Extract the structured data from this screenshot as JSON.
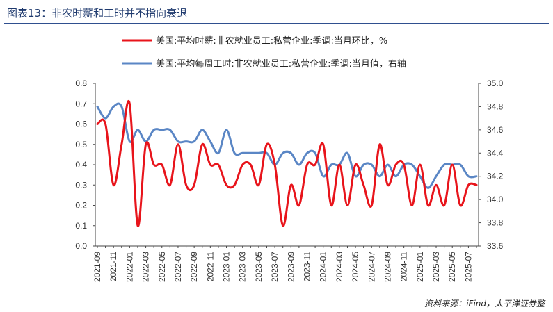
{
  "title": "图表13：非农时薪和工时并不指向衰退",
  "source": "资料来源：iFind，太平洋证券整",
  "chart_data": {
    "type": "line",
    "x": [
      "2021-09",
      "2021-10",
      "2021-11",
      "2021-12",
      "2022-01",
      "2022-02",
      "2022-03",
      "2022-04",
      "2022-05",
      "2022-06",
      "2022-07",
      "2022-08",
      "2022-09",
      "2022-10",
      "2022-11",
      "2022-12",
      "2023-01",
      "2023-02",
      "2023-03",
      "2023-04",
      "2023-05",
      "2023-06",
      "2023-07",
      "2023-08",
      "2023-09",
      "2023-10",
      "2023-11",
      "2023-12",
      "2024-01",
      "2024-02",
      "2024-03",
      "2024-04",
      "2024-05",
      "2024-06",
      "2024-07",
      "2024-08",
      "2024-09",
      "2024-10",
      "2024-11",
      "2024-12",
      "2025-01",
      "2025-02",
      "2025-03",
      "2025-04",
      "2025-05",
      "2025-06",
      "2025-07",
      "2025-08"
    ],
    "x_tick_labels": [
      "2021-09",
      "2021-11",
      "2022-01",
      "2022-03",
      "2022-05",
      "2022-07",
      "2022-09",
      "2022-11",
      "2023-01",
      "2023-03",
      "2023-05",
      "2023-07",
      "2023-09",
      "2023-11",
      "2024-01",
      "2024-03",
      "2024-05",
      "2024-07",
      "2024-09",
      "2024-11",
      "2025-01",
      "2025-03",
      "2025-05",
      "2025-07"
    ],
    "series": [
      {
        "name": "美国:平均时薪:非农就业员工:私营企业:季调:当月环比，%",
        "axis": "left",
        "color": "#e8141b",
        "values": [
          0.6,
          0.6,
          0.3,
          0.5,
          0.7,
          0.1,
          0.5,
          0.4,
          0.4,
          0.3,
          0.5,
          0.3,
          0.3,
          0.5,
          0.4,
          0.4,
          0.3,
          0.3,
          0.4,
          0.4,
          0.3,
          0.5,
          0.4,
          0.1,
          0.3,
          0.2,
          0.4,
          0.4,
          0.5,
          0.2,
          0.4,
          0.2,
          0.4,
          0.3,
          0.2,
          0.5,
          0.3,
          0.4,
          0.4,
          0.2,
          0.4,
          0.2,
          0.3,
          0.2,
          0.4,
          0.2,
          0.3,
          0.3
        ]
      },
      {
        "name": "美国:平均每周工时:非农就业员工:私营企业:季调:当月值，右轴",
        "axis": "right",
        "color": "#5a86c5",
        "values": [
          34.8,
          34.7,
          34.8,
          34.8,
          34.5,
          34.6,
          34.5,
          34.6,
          34.6,
          34.6,
          34.5,
          34.5,
          34.5,
          34.6,
          34.5,
          34.4,
          34.6,
          34.4,
          34.4,
          34.4,
          34.4,
          34.4,
          34.3,
          34.4,
          34.4,
          34.3,
          34.4,
          34.4,
          34.2,
          34.3,
          34.3,
          34.4,
          34.2,
          34.3,
          34.3,
          34.2,
          34.3,
          34.2,
          34.3,
          34.3,
          34.2,
          34.1,
          34.2,
          34.3,
          34.3,
          34.3,
          34.2,
          34.2
        ]
      }
    ],
    "y_left": {
      "min": 0.0,
      "max": 0.8,
      "step": 0.1,
      "tick_labels": [
        "0.0",
        "0.1",
        "0.2",
        "0.3",
        "0.4",
        "0.5",
        "0.6",
        "0.7",
        "0.8"
      ]
    },
    "y_right": {
      "min": 33.6,
      "max": 35.0,
      "step": 0.2,
      "tick_labels": [
        "33.6",
        "33.8",
        "34.0",
        "34.2",
        "34.4",
        "34.6",
        "34.8",
        "35.0"
      ]
    },
    "grid": false,
    "legend_position": "top"
  }
}
